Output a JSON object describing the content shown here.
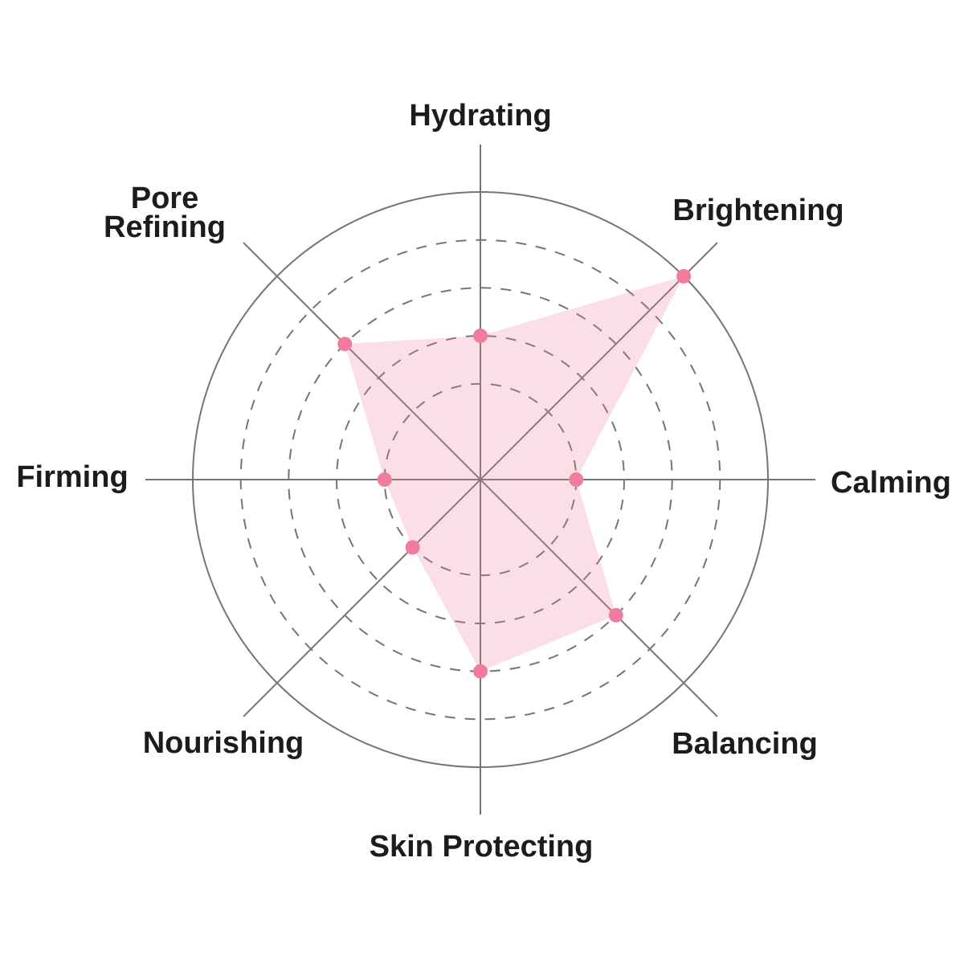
{
  "chart_data": {
    "type": "radar",
    "title": "",
    "categories": [
      "Hydrating",
      "Brightening",
      "Calming",
      "Balancing",
      "Skin Protecting",
      "Nourishing",
      "Firming",
      "Pore Refining"
    ],
    "values": [
      3,
      6,
      2,
      4,
      4,
      2,
      2,
      4
    ],
    "scale_max": 6,
    "dashed_ring_values": [
      2,
      3,
      4,
      5
    ],
    "outer_ring_value": 6,
    "start_axis": "top",
    "direction": "clockwise",
    "grid": "radial",
    "legend_position": "none",
    "colors": {
      "fill": "#F47C9D",
      "fill_opacity": 0.25,
      "dot": "#F17C9C",
      "grid_line": "#757575",
      "label_text": "#1C1C1C",
      "background": "#FFFFFF"
    }
  }
}
